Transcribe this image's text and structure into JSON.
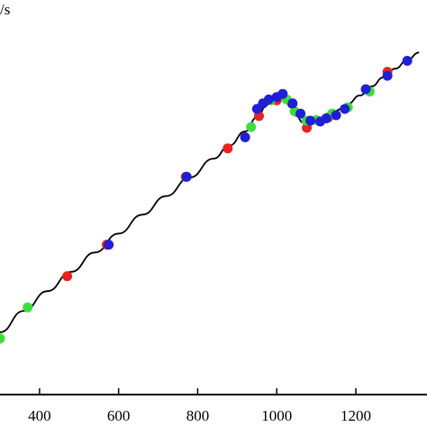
{
  "chart_data": {
    "type": "scatter",
    "ylabel_fragment": "/s",
    "xlim": [
      300,
      1380
    ],
    "ylim": [
      0,
      1
    ],
    "x_ticks": [
      400,
      600,
      800,
      1000,
      1200
    ],
    "x_tick_labels": [
      "400",
      "600",
      "800",
      "1000",
      "1200"
    ],
    "grid": false,
    "legend": "none",
    "colors": {
      "red": "#e8231f",
      "green": "#3fdc3f",
      "blue": "#1f1fd6",
      "curve": "#000000",
      "axis": "#000000"
    },
    "fit_curve": {
      "x": [
        300,
        360,
        420,
        480,
        540,
        600,
        660,
        720,
        780,
        840,
        880,
        920,
        950,
        975,
        990,
        1000,
        1010,
        1020,
        1035,
        1050,
        1065,
        1080,
        1100,
        1120,
        1140,
        1160,
        1180,
        1210,
        1240,
        1270,
        1300,
        1330,
        1360
      ],
      "y": [
        0.158,
        0.212,
        0.262,
        0.311,
        0.36,
        0.408,
        0.456,
        0.503,
        0.55,
        0.598,
        0.631,
        0.667,
        0.703,
        0.734,
        0.749,
        0.755,
        0.755,
        0.748,
        0.728,
        0.706,
        0.69,
        0.684,
        0.688,
        0.7,
        0.711,
        0.723,
        0.737,
        0.758,
        0.781,
        0.804,
        0.826,
        0.848,
        0.867
      ]
    },
    "series": [
      {
        "color": "red",
        "points": [
          [
            470,
            0.3
          ],
          [
            570,
            0.38
          ],
          [
            770,
            0.552
          ],
          [
            876,
            0.624
          ],
          [
            955,
            0.706
          ],
          [
            1000,
            0.746
          ],
          [
            1076,
            0.676
          ],
          [
            1130,
            0.702
          ],
          [
            1280,
            0.818
          ]
        ]
      },
      {
        "color": "green",
        "points": [
          [
            300,
            0.142
          ],
          [
            370,
            0.221
          ],
          [
            935,
            0.678
          ],
          [
            985,
            0.746
          ],
          [
            1025,
            0.748
          ],
          [
            1045,
            0.718
          ],
          [
            1075,
            0.694
          ],
          [
            1100,
            0.696
          ],
          [
            1140,
            0.712
          ],
          [
            1180,
            0.728
          ],
          [
            1235,
            0.768
          ]
        ]
      },
      {
        "color": "blue",
        "points": [
          [
            575,
            0.38
          ],
          [
            772,
            0.552
          ],
          [
            920,
            0.652
          ],
          [
            950,
            0.724
          ],
          [
            965,
            0.738
          ],
          [
            980,
            0.748
          ],
          [
            1000,
            0.754
          ],
          [
            1015,
            0.762
          ],
          [
            1040,
            0.738
          ],
          [
            1060,
            0.712
          ],
          [
            1085,
            0.694
          ],
          [
            1110,
            0.692
          ],
          [
            1125,
            0.7
          ],
          [
            1150,
            0.708
          ],
          [
            1172,
            0.724
          ],
          [
            1225,
            0.774
          ],
          [
            1280,
            0.808
          ],
          [
            1330,
            0.846
          ]
        ]
      }
    ]
  }
}
